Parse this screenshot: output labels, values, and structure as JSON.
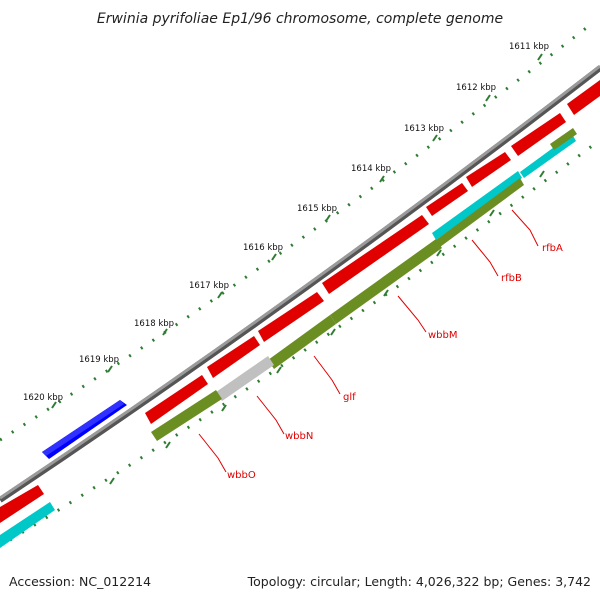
{
  "title": "Erwinia pyrifoliae Ep1/96 chromosome, complete genome",
  "footer": {
    "accession": "Accession: NC_012214",
    "summary": "Topology: circular; Length: 4,026,322 bp; Genes: 3,742"
  },
  "ticks": [
    "1611 kbp",
    "1612 kbp",
    "1613 kbp",
    "1614 kbp",
    "1615 kbp",
    "1616 kbp",
    "1617 kbp",
    "1618 kbp",
    "1619 kbp",
    "1620 kbp"
  ],
  "genes": [
    "rfbA",
    "rfbB",
    "wbbM",
    "glf",
    "wbbN",
    "wbbO"
  ],
  "colors": {
    "backbone": "#808080",
    "forward": "#ff0000",
    "reverse": "#6b8e23",
    "reverse_alt": "#00c8c8",
    "rna": "#0000ff",
    "pseudo": "#c0c0c0",
    "ticks": "#2e8b57",
    "label_line": "#ff0000"
  }
}
